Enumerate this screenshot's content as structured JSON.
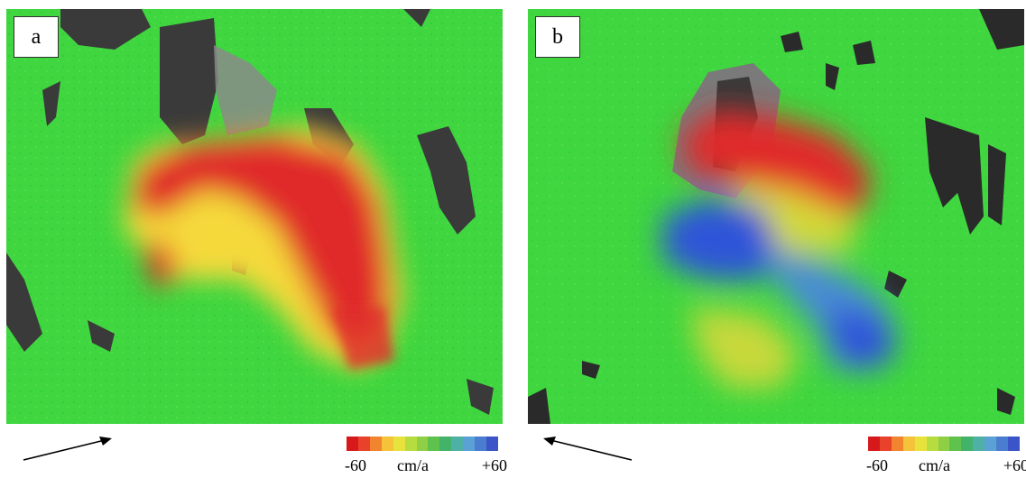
{
  "panels": [
    {
      "label": "a"
    },
    {
      "label": "b"
    }
  ],
  "legend": {
    "min_label": "-60",
    "unit_label": "cm/a",
    "max_label": "+60",
    "min_value": -60,
    "max_value": 60,
    "colors": [
      "#d7191c",
      "#e8422a",
      "#f2832f",
      "#f5c33a",
      "#e8e23d",
      "#b7dc3f",
      "#8fcf45",
      "#5ec24d",
      "#43b36a",
      "#4fb1a6",
      "#5aa1d6",
      "#4a7dd0",
      "#3b55c8"
    ]
  },
  "colors": {
    "stable_green": "#3fd63f",
    "subsidence_red": "#e02a2a",
    "uplift_blue": "#2e55d8",
    "no_data": "#3a3a3a"
  },
  "icons": {
    "direction_arrow": "arrow-icon"
  }
}
